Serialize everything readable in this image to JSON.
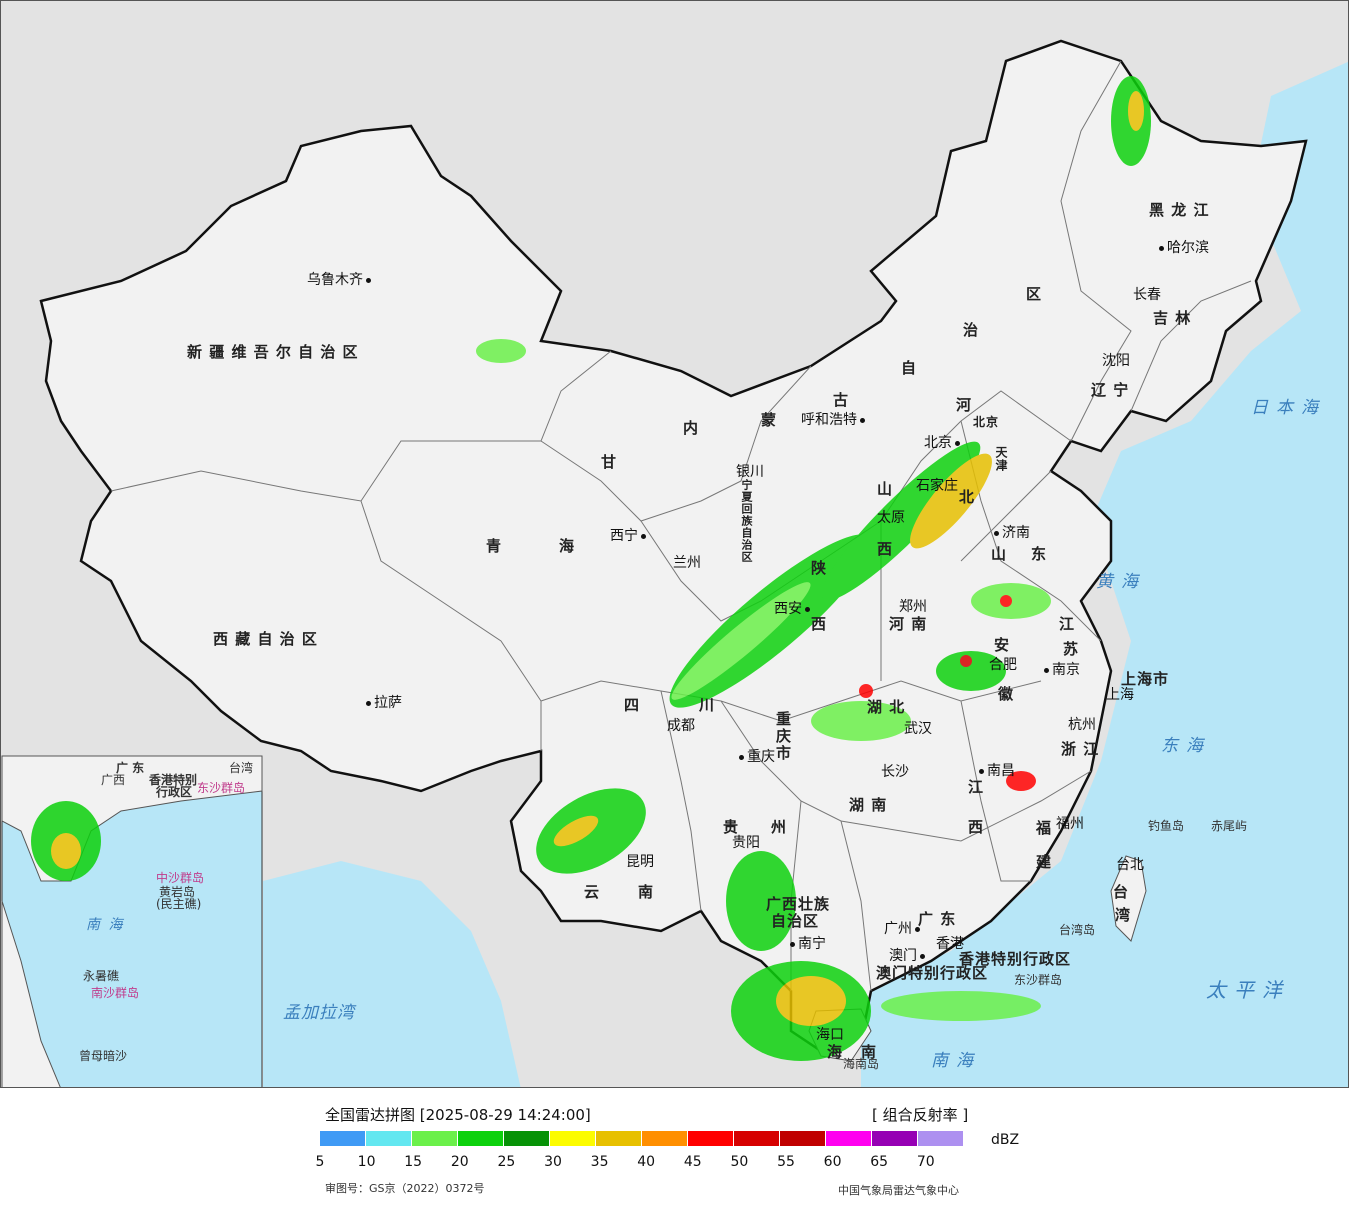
{
  "colors": {
    "land": "#f2f2f2",
    "sea": "#b7e6f7",
    "foreign": "#e3e3e3",
    "border": "#111111",
    "province_border": "#777777"
  },
  "provinces": {
    "xinjiang": "新 疆 维 吾 尔 自 治 区",
    "xizang": "西 藏 自 治 区",
    "qinghai_1": "青",
    "qinghai_2": "海",
    "gansu": "甘",
    "neimenggu_1": "内",
    "neimenggu_2": "蒙",
    "neimenggu_3": "古",
    "neimenggu_4": "自",
    "neimenggu_5": "治",
    "neimenggu_6": "区",
    "heilongjiang": "黑 龙 江",
    "jilin": "吉 林",
    "liaoning": "辽 宁",
    "hebei_1": "河",
    "hebei_2": "北",
    "tianjin": "天津",
    "shanxi_1": "山",
    "shanxi_2": "西",
    "shaanxi_1": "陕",
    "shaanxi_2": "西",
    "shandong_1": "山",
    "shandong_2": "东",
    "henan": "河 南",
    "jiangsu_1": "江",
    "jiangsu_2": "苏",
    "anhui_1": "安",
    "anhui_2": "徽",
    "shanghai": "上海市",
    "hubei": "湖 北",
    "chongqing_1": "重",
    "chongqing_2": "庆",
    "chongqing_3": "市",
    "sichuan_1": "四",
    "sichuan_2": "川",
    "zhejiang": "浙 江",
    "hunan": "湖 南",
    "jiangxi_1": "江",
    "jiangxi_2": "西",
    "fujian_1": "福",
    "fujian_2": "建",
    "guizhou_1": "贵",
    "guizhou_2": "州",
    "yunnan_1": "云",
    "yunnan_2": "南",
    "guangxi_1": "广西壮族",
    "guangxi_2": "自治区",
    "guangdong": "广 东",
    "hongkong": "香港特别行政区",
    "macau": "澳门特别行政区",
    "taiwan_1": "台",
    "taiwan_2": "湾",
    "hainan_1": "海",
    "hainan_2": "南",
    "ningxia": "宁夏回族自治区",
    "beijing": "北京",
    "tianjin_city": "天津"
  },
  "cities": {
    "urumqi": "乌鲁木齐",
    "lhasa": "拉萨",
    "xining": "西宁",
    "lanzhou": "兰州",
    "yinchuan": "银川",
    "hohhot": "呼和浩特",
    "beijing": "北京",
    "shijiazhuang": "石家庄",
    "taiyuan": "太原",
    "jinan": "济南",
    "xian": "西安",
    "zhengzhou": "郑州",
    "hefei": "合肥",
    "nanjing": "南京",
    "shanghai": "上海",
    "hangzhou": "杭州",
    "wuhan": "武汉",
    "chengdu": "成都",
    "chongqing": "重庆",
    "changsha": "长沙",
    "nanchang": "南昌",
    "fuzhou": "福州",
    "guiyang": "贵阳",
    "kunming": "昆明",
    "nanning": "南宁",
    "guangzhou": "广州",
    "hongkong": "香港",
    "macau": "澳门",
    "haikou": "海口",
    "taipei": "台北",
    "shenyang": "沈阳",
    "changchun": "长春",
    "harbin": "哈尔滨"
  },
  "seas": {
    "japan_sea": "日本海",
    "yellow_sea": "黄海",
    "east_sea": "东海",
    "pacific": "太平洋",
    "south_sea": "南海",
    "bay_of_bengal": "孟加拉湾"
  },
  "islands": {
    "diaoyu": "钓鱼岛",
    "chiwei": "赤尾屿",
    "taiwan_island": "台湾岛",
    "dongsha": "东沙群岛",
    "hainan_island": "海南岛"
  },
  "inset": {
    "guangdong": "广 东",
    "taiwan": "台湾",
    "guangxi": "广西",
    "hongkong": "香港特别",
    "hk_2": "行政区",
    "dongsha": "东沙群岛",
    "zhongsha": "中沙群岛",
    "huangyan": "黄岩岛",
    "minzhu": "(民主礁)",
    "south_sea": "南 海",
    "yongshu": "永暑礁",
    "nansha": "南沙群岛",
    "zengmu": "曾母暗沙"
  },
  "legend": {
    "title": "全国雷达拼图 [2025-08-29 14:24:00]",
    "product": "[ 组合反射率 ]",
    "unit": "dBZ",
    "ticks": [
      "5",
      "10",
      "15",
      "20",
      "25",
      "30",
      "35",
      "40",
      "45",
      "50",
      "55",
      "60",
      "65",
      "70"
    ],
    "colors": [
      "#3f9af5",
      "#63e7f0",
      "#6bf04a",
      "#0dd10d",
      "#069206",
      "#fcfc00",
      "#e7c000",
      "#ff8f00",
      "#ff0000",
      "#d60000",
      "#c00000",
      "#ff00f0",
      "#9600b4",
      "#ad90f0"
    ],
    "approval": "审图号：GS京（2022）0372号",
    "agency": "中国气象局雷达气象中心"
  }
}
